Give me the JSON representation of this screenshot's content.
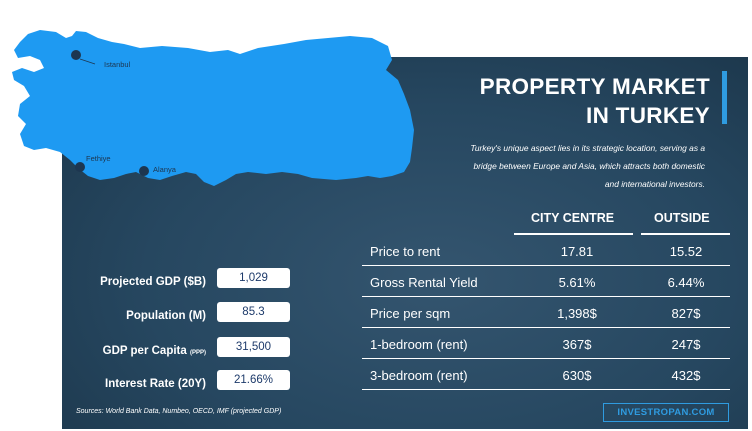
{
  "title_lines": [
    "PROPERTY MARKET",
    "IN TURKEY"
  ],
  "subtitle_lines": [
    "Turkey's unique aspect lies in its strategic location, serving as a",
    "bridge between Europe and Asia, which attracts both domestic",
    "and international investors."
  ],
  "map": {
    "cities": [
      {
        "name": "Istanbul"
      },
      {
        "name": "Fethiye"
      },
      {
        "name": "Alanya"
      }
    ]
  },
  "table": {
    "columns": [
      "CITY CENTRE",
      "OUTSIDE"
    ],
    "rows": [
      {
        "label": "Price to rent",
        "city": "17.81",
        "outside": "15.52"
      },
      {
        "label": "Gross Rental Yield",
        "city": "5.61%",
        "outside": "6.44%"
      },
      {
        "label": "Price per sqm",
        "city": "1,398$",
        "outside": "827$"
      },
      {
        "label": "1-bedroom (rent)",
        "city": "367$",
        "outside": "247$"
      },
      {
        "label": "3-bedroom (rent)",
        "city": "630$",
        "outside": "432$"
      }
    ]
  },
  "kpis": [
    {
      "label": "Projected GDP ($B)",
      "suffix": "",
      "value": "1,029"
    },
    {
      "label": "Population (M)",
      "suffix": "",
      "value": "85.3"
    },
    {
      "label": "GDP per Capita",
      "suffix": "(PPP)",
      "value": "31,500"
    },
    {
      "label": "Interest Rate (20Y)",
      "suffix": "",
      "value": "21.66%"
    }
  ],
  "sources": "Sources:  World Bank Data, Numbeo, OECD, IMF (projected GDP)",
  "brand": "INVESTROPAN.COM",
  "colors": {
    "accent": "#2f9be0",
    "map_fill": "#1e9af2",
    "panel": "#264760"
  }
}
